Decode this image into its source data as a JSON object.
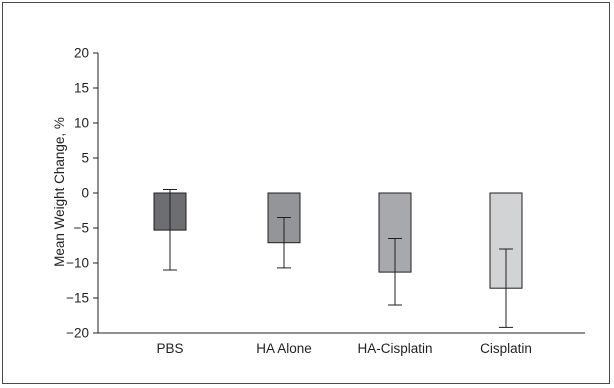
{
  "chart_data": {
    "type": "bar",
    "categories": [
      "PBS",
      "HA Alone",
      "HA-Cisplatin",
      "Cisplatin"
    ],
    "values": [
      -5.3,
      -7.1,
      -11.3,
      -13.6
    ],
    "error_bars": [
      {
        "low": -11.0,
        "high": 0.5
      },
      {
        "low": -10.7,
        "high": -3.5
      },
      {
        "low": -16.0,
        "high": -6.5
      },
      {
        "low": -19.2,
        "high": -8.0
      }
    ],
    "bar_colors": [
      "#6d6e71",
      "#939598",
      "#a7a9ac",
      "#d1d3d4"
    ],
    "xlabel": "",
    "ylabel": "Mean Weight Change, %",
    "ylim": [
      -20,
      20
    ],
    "yticks": [
      20,
      15,
      10,
      5,
      0,
      -5,
      -10,
      -15,
      -20
    ],
    "grid": false
  }
}
